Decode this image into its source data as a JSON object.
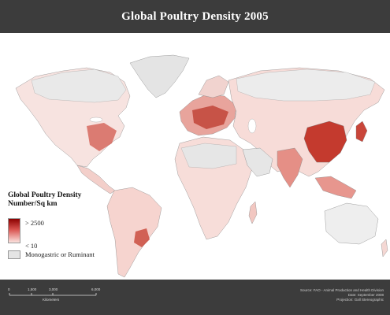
{
  "title": "Global Poultry Density 2005",
  "legend": {
    "title_line1": "Global Poultry Density",
    "title_line2": "Number/Sq km",
    "high_label": "> 2500",
    "low_label": "< 10",
    "nodata_label": "Monogastric or Ruminant"
  },
  "scale_bar": {
    "ticks": [
      "0",
      "1,500",
      "3,000",
      "6,000"
    ],
    "unit": "Kilometers"
  },
  "source": {
    "line1": "Source: FAO - Animal Production and Health Division",
    "line2": "Date: September 2008",
    "line3": "Projection: Gall Stereographic"
  },
  "colors": {
    "title_bar": "#3c3c3c",
    "land_nodata": "#e4e4e4",
    "density_low": "#fbe3df",
    "density_mid": "#e8837a",
    "density_high": "#8b0000",
    "water": "#ffffff"
  }
}
